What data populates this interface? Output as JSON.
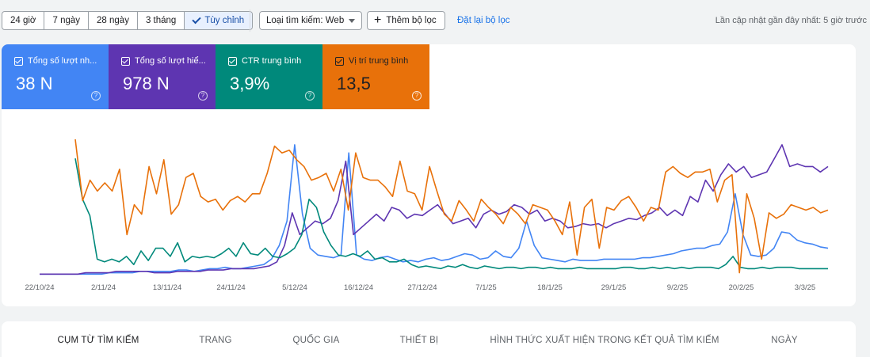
{
  "toolbar": {
    "ranges": [
      "24 giờ",
      "7 ngày",
      "28 ngày",
      "3 tháng",
      "Tùy chỉnh"
    ],
    "search_type": "Loại tìm kiếm: Web",
    "add_filter": "Thêm bộ lọc",
    "reset_filters": "Đặt lại bộ lọc",
    "last_updated": "Lần cập nhật gần đây nhất: 5 giờ trước"
  },
  "metrics": [
    {
      "label": "Tổng số lượt nh...",
      "value": "38 N",
      "color": "#4285f4"
    },
    {
      "label": "Tổng số lượt hiể...",
      "value": "978 N",
      "color": "#5e35b1"
    },
    {
      "label": "CTR trung bình",
      "value": "3,9%",
      "color": "#00897b"
    },
    {
      "label": "Vị trí trung bình",
      "value": "13,5",
      "color": "#e8710a"
    }
  ],
  "chart_data": {
    "type": "line",
    "x_tick_labels": [
      "22/10/24",
      "2/11/24",
      "13/11/24",
      "24/11/24",
      "5/12/24",
      "16/12/24",
      "27/12/24",
      "7/1/25",
      "18/1/25",
      "29/1/25",
      "9/2/25",
      "20/2/25",
      "3/3/25"
    ],
    "y_axis": "hidden, each series independently scaled 0–1",
    "series": [
      {
        "color": "#4285f4",
        "values": [
          0.01,
          0.01,
          0.01,
          0.01,
          0.01,
          0.01,
          0.01,
          0.01,
          0.01,
          0.02,
          0.02,
          0.02,
          0.02,
          0.03,
          0.03,
          0.03,
          0.03,
          0.03,
          0.04,
          0.04,
          0.03,
          0.04,
          0.05,
          0.05,
          0.06,
          0.05,
          0.05,
          0.06,
          0.07,
          0.08,
          0.12,
          0.22,
          0.4,
          0.96,
          0.45,
          0.2,
          0.15,
          0.14,
          0.13,
          0.15,
          0.9,
          0.15,
          0.12,
          0.11,
          0.13,
          0.14,
          0.12,
          0.1,
          0.11,
          0.1,
          0.12,
          0.13,
          0.11,
          0.12,
          0.14,
          0.16,
          0.15,
          0.12,
          0.13,
          0.18,
          0.14,
          0.13,
          0.2,
          0.4,
          0.22,
          0.13,
          0.12,
          0.11,
          0.1,
          0.12,
          0.11,
          0.11,
          0.11,
          0.12,
          0.12,
          0.12,
          0.12,
          0.12,
          0.13,
          0.13,
          0.14,
          0.15,
          0.16,
          0.18,
          0.19,
          0.2,
          0.2,
          0.22,
          0.23,
          0.32,
          0.6,
          0.3,
          0.15,
          0.14,
          0.15,
          0.2,
          0.32,
          0.31,
          0.26,
          0.24,
          0.23,
          0.21,
          0.2
        ]
      },
      {
        "color": "#5e35b1",
        "values": [
          0.01,
          0.01,
          0.01,
          0.01,
          0.01,
          0.01,
          0.02,
          0.02,
          0.02,
          0.02,
          0.03,
          0.03,
          0.03,
          0.03,
          0.03,
          0.02,
          0.02,
          0.02,
          0.03,
          0.03,
          0.03,
          0.03,
          0.04,
          0.04,
          0.04,
          0.05,
          0.05,
          0.05,
          0.05,
          0.06,
          0.07,
          0.1,
          0.22,
          0.46,
          0.3,
          0.35,
          0.4,
          0.38,
          0.42,
          0.55,
          0.84,
          0.3,
          0.35,
          0.4,
          0.45,
          0.4,
          0.5,
          0.48,
          0.42,
          0.45,
          0.44,
          0.48,
          0.52,
          0.45,
          0.38,
          0.4,
          0.42,
          0.35,
          0.45,
          0.48,
          0.45,
          0.47,
          0.52,
          0.5,
          0.45,
          0.48,
          0.4,
          0.42,
          0.4,
          0.35,
          0.36,
          0.38,
          0.37,
          0.38,
          0.35,
          0.38,
          0.4,
          0.42,
          0.41,
          0.44,
          0.46,
          0.5,
          0.44,
          0.48,
          0.44,
          0.58,
          0.54,
          0.7,
          0.62,
          0.74,
          0.82,
          0.76,
          0.8,
          0.72,
          0.74,
          0.76,
          0.86,
          0.96,
          0.8,
          0.82,
          0.8,
          0.8,
          0.76,
          0.8
        ]
      },
      {
        "color": "#00897b",
        "values": [
          0.86,
          0.56,
          0.44,
          0.12,
          0.1,
          0.12,
          0.1,
          0.14,
          0.08,
          0.18,
          0.11,
          0.2,
          0.2,
          0.14,
          0.24,
          0.1,
          0.14,
          0.13,
          0.14,
          0.13,
          0.16,
          0.2,
          0.14,
          0.24,
          0.16,
          0.15,
          0.2,
          0.14,
          0.13,
          0.16,
          0.2,
          0.3,
          0.56,
          0.5,
          0.32,
          0.22,
          0.15,
          0.14,
          0.16,
          0.14,
          0.18,
          0.12,
          0.13,
          0.1,
          0.1,
          0.12,
          0.08,
          0.06,
          0.07,
          0.06,
          0.05,
          0.07,
          0.06,
          0.08,
          0.06,
          0.05,
          0.07,
          0.06,
          0.05,
          0.06,
          0.06,
          0.05,
          0.06,
          0.06,
          0.05,
          0.06,
          0.05,
          0.05,
          0.05,
          0.06,
          0.05,
          0.05,
          0.05,
          0.05,
          0.05,
          0.06,
          0.06,
          0.05,
          0.05,
          0.06,
          0.05,
          0.06,
          0.05,
          0.06,
          0.05,
          0.06,
          0.06,
          0.06,
          0.05,
          0.08,
          0.14,
          0.06,
          0.05,
          0.05,
          0.06,
          0.05,
          0.06,
          0.06,
          0.06,
          0.05,
          0.05,
          0.05,
          0.05,
          0.05
        ]
      },
      {
        "color": "#e8710a",
        "values": [
          1.0,
          0.55,
          0.7,
          0.62,
          0.68,
          0.62,
          0.78,
          0.3,
          0.52,
          0.45,
          0.8,
          0.6,
          0.85,
          0.45,
          0.52,
          0.72,
          0.75,
          0.58,
          0.54,
          0.56,
          0.48,
          0.55,
          0.58,
          0.54,
          0.6,
          0.6,
          0.75,
          0.95,
          0.9,
          0.92,
          0.85,
          0.8,
          0.7,
          0.72,
          0.75,
          0.62,
          0.78,
          0.48,
          0.9,
          0.72,
          0.7,
          0.7,
          0.65,
          0.58,
          0.84,
          0.62,
          0.6,
          0.48,
          0.8,
          0.62,
          0.45,
          0.4,
          0.55,
          0.48,
          0.4,
          0.56,
          0.5,
          0.45,
          0.38,
          0.5,
          0.45,
          0.38,
          0.52,
          0.5,
          0.48,
          0.4,
          0.3,
          0.54,
          0.15,
          0.5,
          0.56,
          0.2,
          0.5,
          0.48,
          0.55,
          0.58,
          0.5,
          0.4,
          0.5,
          0.48,
          0.76,
          0.8,
          0.75,
          0.72,
          0.76,
          0.76,
          0.78,
          0.54,
          0.7,
          0.74,
          0.02,
          0.6,
          0.42,
          0.12,
          0.46,
          0.42,
          0.45,
          0.52,
          0.5,
          0.48,
          0.5,
          0.46,
          0.48
        ]
      }
    ]
  },
  "tabs": [
    "CỤM TỪ TÌM KIẾM",
    "TRANG",
    "QUỐC GIA",
    "THIẾT BỊ",
    "HÌNH THỨC XUẤT HIỆN TRONG KẾT QUẢ TÌM KIẾM",
    "NGÀY"
  ]
}
